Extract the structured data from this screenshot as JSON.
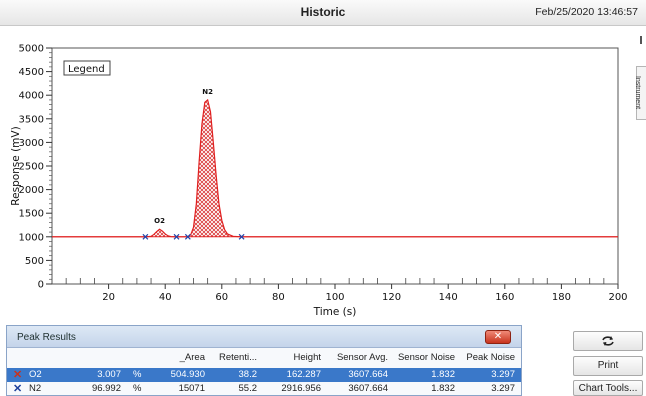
{
  "window": {
    "title": "Historic",
    "datetime": "Feb/25/2020 13:46:57"
  },
  "side_tab": {
    "label": "Instrument"
  },
  "chart_data": {
    "type": "line",
    "title": "",
    "xlabel": "Time (s)",
    "ylabel": "Response (mV)",
    "xlim": [
      0,
      200
    ],
    "ylim": [
      0,
      5000
    ],
    "x_ticks": [
      20,
      40,
      60,
      80,
      100,
      120,
      140,
      160,
      180,
      200
    ],
    "y_ticks": [
      0,
      500,
      1000,
      1500,
      2000,
      2500,
      3000,
      3500,
      4000,
      4500,
      5000
    ],
    "legend_label": "Legend",
    "legend_placement": "top-left",
    "baseline": 1000,
    "series": [
      {
        "x": [
          0,
          33,
          35,
          36,
          37,
          38,
          39,
          40,
          41,
          42,
          44,
          48,
          49,
          50,
          51,
          52,
          53,
          54,
          55,
          56,
          57,
          58,
          59,
          60,
          61,
          62,
          64,
          67,
          200
        ],
        "y": [
          1000,
          1000,
          1010,
          1050,
          1110,
          1160,
          1120,
          1060,
          1020,
          1005,
          1000,
          1000,
          1040,
          1200,
          1700,
          2600,
          3400,
          3850,
          3900,
          3650,
          3000,
          2300,
          1700,
          1350,
          1150,
          1060,
          1010,
          1000,
          1000
        ]
      }
    ],
    "peaks": [
      {
        "label": "O2",
        "x": 38,
        "y": 1160
      },
      {
        "label": "N2",
        "x": 55,
        "y": 3900
      }
    ],
    "integration_markers": [
      {
        "x": 33,
        "y": 1000
      },
      {
        "x": 44,
        "y": 1000
      },
      {
        "x": 48,
        "y": 1000
      },
      {
        "x": 67,
        "y": 1000
      }
    ],
    "hatched_ranges": [
      [
        33,
        44
      ],
      [
        48,
        67
      ]
    ],
    "colors": {
      "line": "#e02020",
      "marker": "#2244aa",
      "fill": "#d42020"
    }
  },
  "peak_results": {
    "title": "Peak Results",
    "columns": [
      "",
      "",
      "_Area",
      "Retenti...",
      "Height",
      "Sensor Avg.",
      "Sensor Noise",
      "Peak Noise"
    ],
    "rows": [
      {
        "name": "O2",
        "pct": "3.007",
        "unit": "%",
        "area": "504.930",
        "retention": "38.2",
        "height": "162.287",
        "sensor_avg": "3607.664",
        "sensor_noise": "1.832",
        "peak_noise": "3.297",
        "selected": true
      },
      {
        "name": "N2",
        "pct": "96.992",
        "unit": "%",
        "area": "15071",
        "retention": "55.2",
        "height": "2916.956",
        "sensor_avg": "3607.664",
        "sensor_noise": "1.832",
        "peak_noise": "3.297",
        "selected": false
      }
    ]
  },
  "buttons": {
    "refresh_icon": "refresh-icon",
    "print": "Print",
    "chart_tools": "Chart Tools..."
  }
}
